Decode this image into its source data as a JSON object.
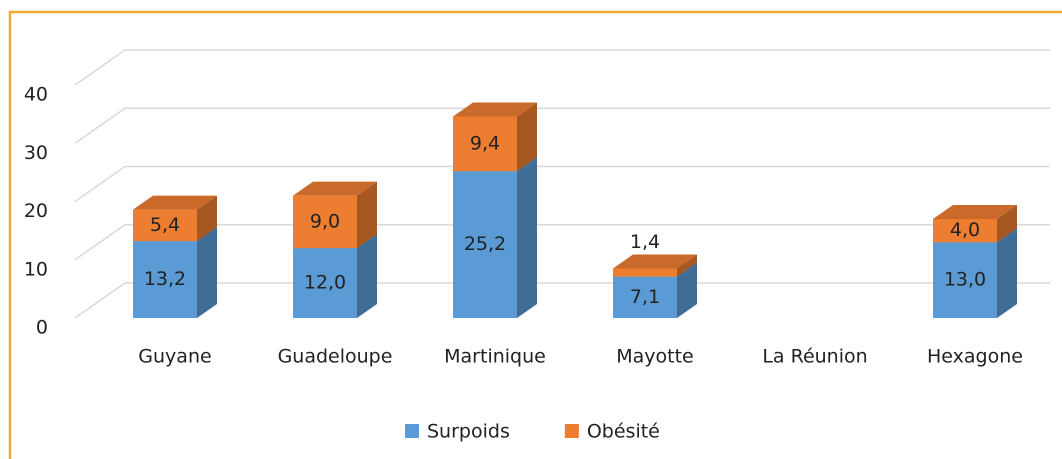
{
  "chart_data": {
    "type": "bar3d_stacked",
    "categories": [
      "Guyane",
      "Guadeloupe",
      "Martinique",
      "Mayotte",
      "La Réunion",
      "Hexagone"
    ],
    "series": [
      {
        "name": "Surpoids",
        "color": "#5b9bd5",
        "values": [
          13.2,
          12.0,
          25.2,
          7.1,
          null,
          13.0
        ],
        "value_labels": [
          "13,2",
          "12,0",
          "25,2",
          "7,1",
          null,
          "13,0"
        ]
      },
      {
        "name": "Obésité",
        "color": "#ed7d31",
        "values": [
          5.4,
          9.0,
          9.4,
          1.4,
          null,
          4.0
        ],
        "value_labels": [
          "5,4",
          "9,0",
          "9,4",
          "1,4",
          null,
          "4,0"
        ]
      }
    ],
    "ylim": [
      0,
      40
    ],
    "yticks": [
      0,
      10,
      20,
      30,
      40
    ],
    "grid": true,
    "legend": "bottom"
  }
}
